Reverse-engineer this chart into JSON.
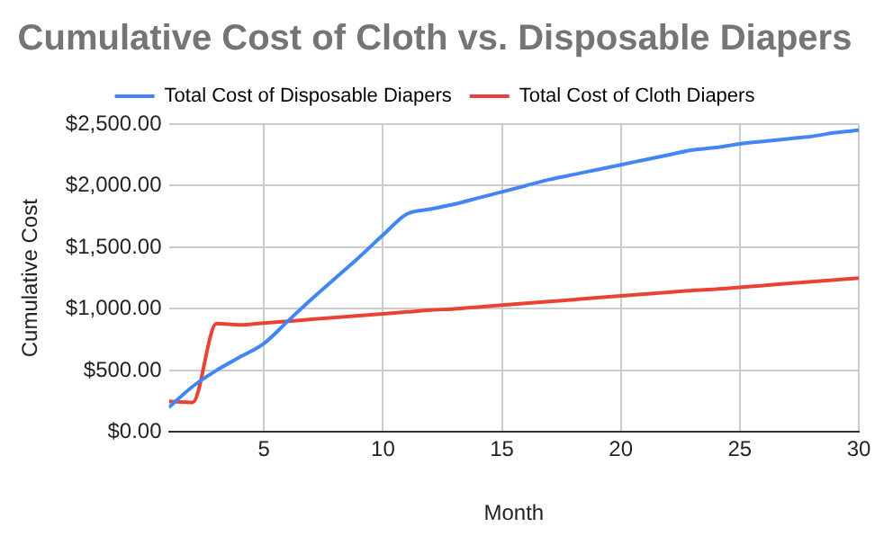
{
  "chart_data": {
    "type": "line",
    "title": "Cumulative Cost of Cloth vs. Disposable Diapers",
    "xlabel": "Month",
    "ylabel": "Cumulative Cost",
    "x": [
      1,
      2,
      3,
      4,
      5,
      6,
      7,
      8,
      9,
      10,
      11,
      12,
      13,
      14,
      15,
      16,
      17,
      18,
      19,
      20,
      21,
      22,
      23,
      24,
      25,
      26,
      27,
      28,
      29,
      30
    ],
    "series": [
      {
        "name": "Total Cost of Disposable Diapers",
        "color": "#4285f4",
        "values": [
          200,
          370,
          500,
          610,
          720,
          900,
          1080,
          1250,
          1420,
          1600,
          1770,
          1810,
          1850,
          1900,
          1950,
          2000,
          2050,
          2090,
          2130,
          2170,
          2210,
          2250,
          2290,
          2310,
          2340,
          2360,
          2380,
          2400,
          2430,
          2450
        ]
      },
      {
        "name": "Total Cost of Cloth Diapers",
        "color": "#ea4335",
        "values": [
          250,
          240,
          880,
          870,
          885,
          900,
          915,
          930,
          945,
          960,
          975,
          990,
          1000,
          1015,
          1030,
          1045,
          1060,
          1075,
          1090,
          1105,
          1120,
          1135,
          1150,
          1160,
          1175,
          1190,
          1205,
          1220,
          1235,
          1250
        ]
      }
    ],
    "xlim": [
      1,
      30
    ],
    "xticks": [
      5,
      10,
      15,
      20,
      25,
      30
    ],
    "ylim": [
      0,
      2500
    ],
    "yticks": [
      {
        "value": 0,
        "label": "$0.00"
      },
      {
        "value": 500,
        "label": "$500.00"
      },
      {
        "value": 1000,
        "label": "$1,000.00"
      },
      {
        "value": 1500,
        "label": "$1,500.00"
      },
      {
        "value": 2000,
        "label": "$2,000.00"
      },
      {
        "value": 2500,
        "label": "$2,500.00"
      }
    ],
    "grid": true,
    "legend": "top",
    "marker": "none"
  }
}
